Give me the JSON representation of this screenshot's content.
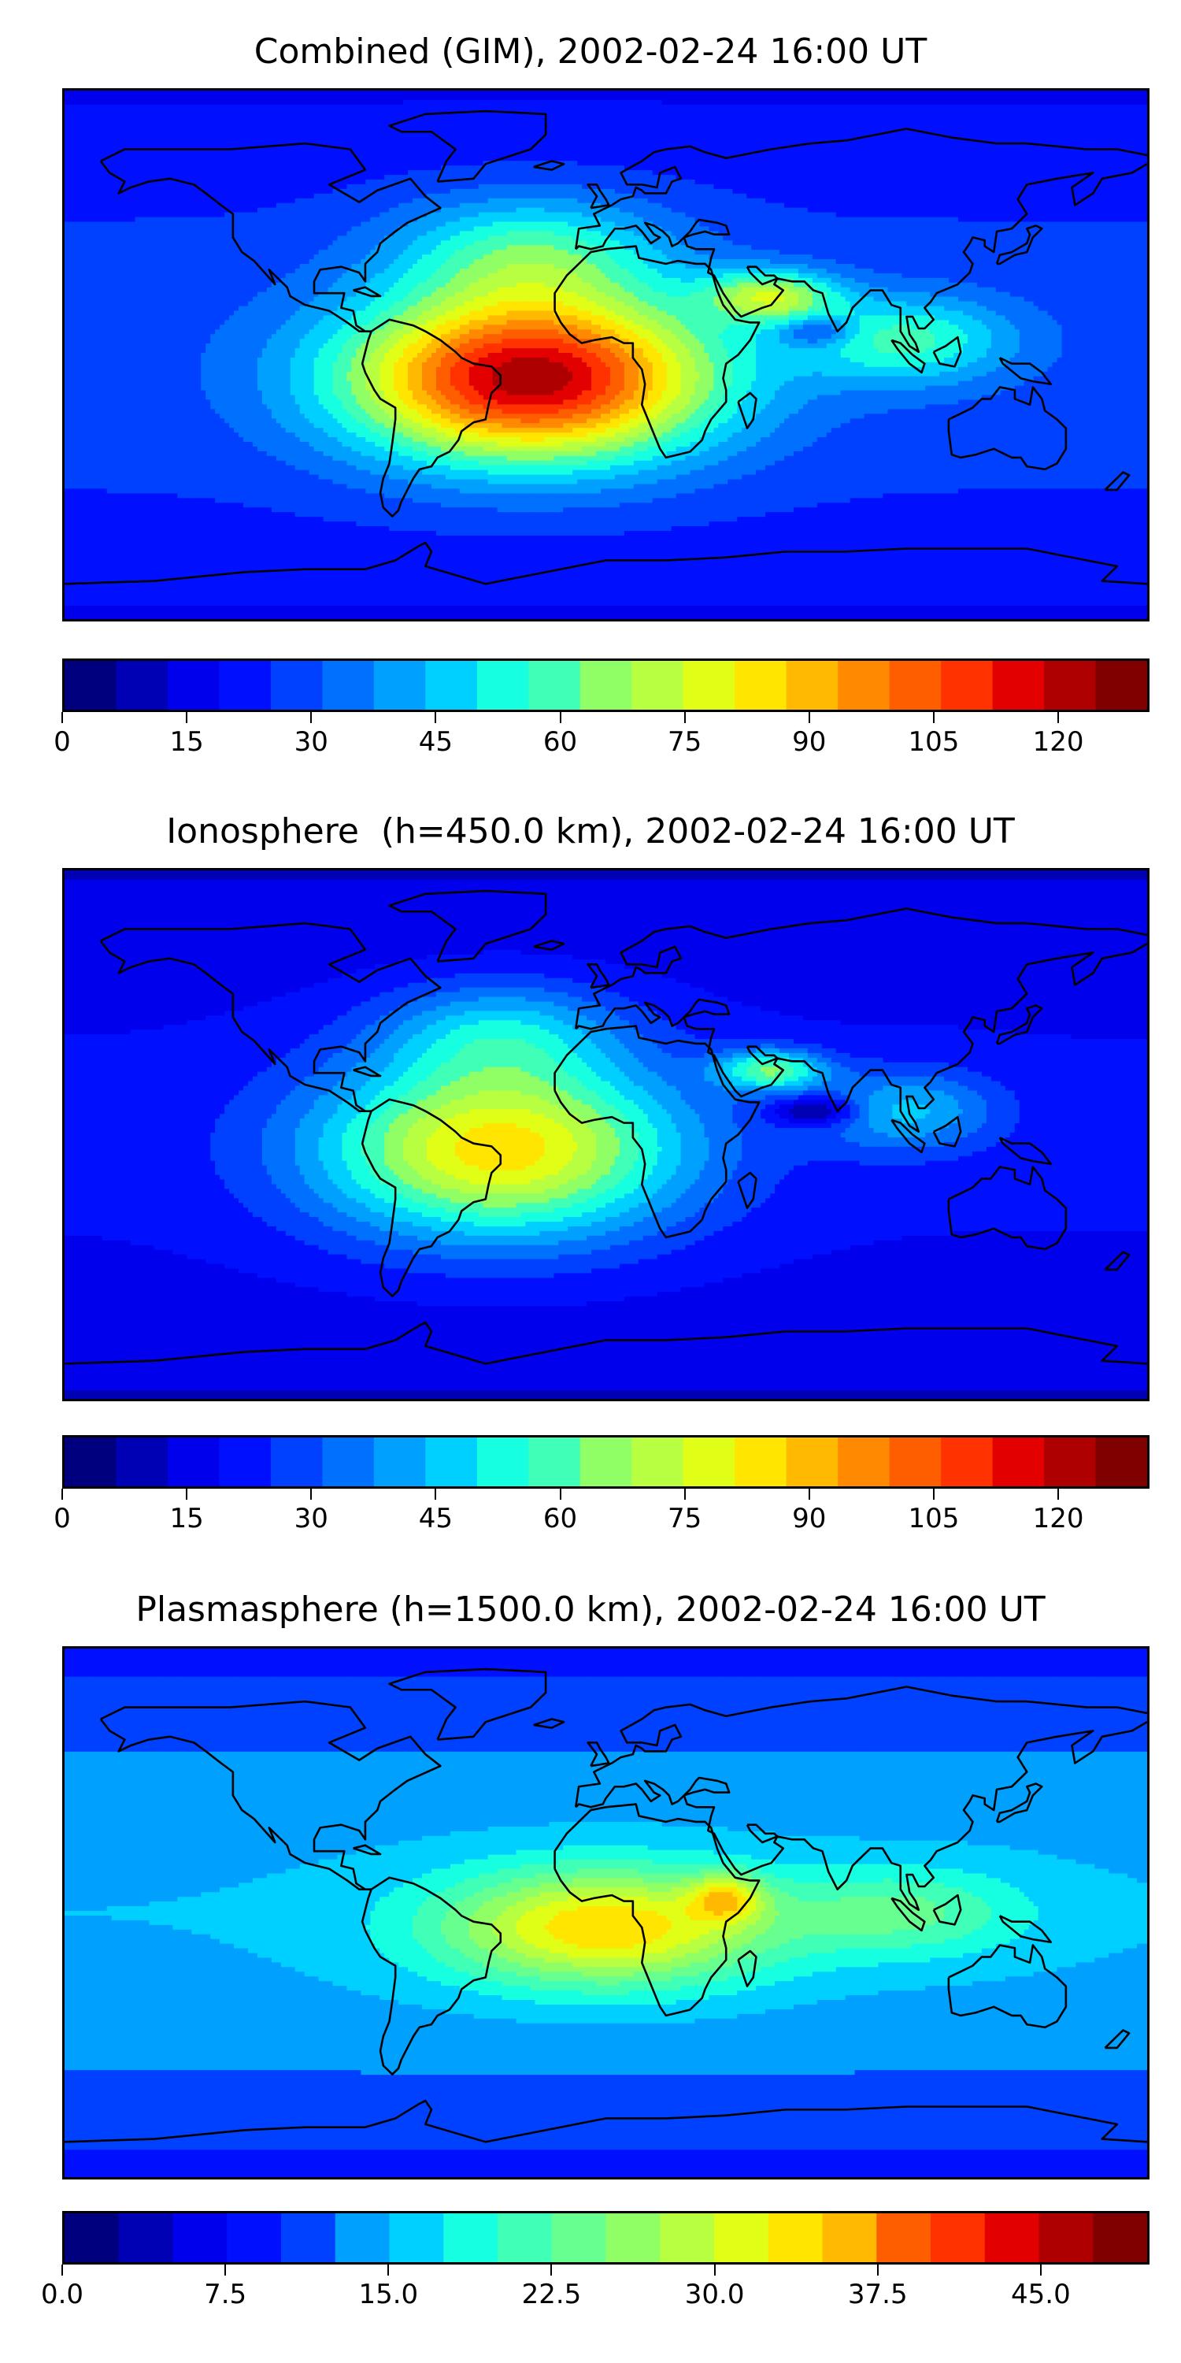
{
  "figure": {
    "panels": [
      {
        "title": "Combined (GIM), 2002-02-24 16:00 UT",
        "field": "combined",
        "colorbar": {
          "min": 0,
          "max": 131,
          "levels": 21,
          "ticks": [
            "0",
            "15",
            "30",
            "45",
            "60",
            "75",
            "90",
            "105",
            "120"
          ],
          "tick_values": [
            0,
            15,
            30,
            45,
            60,
            75,
            90,
            105,
            120
          ]
        }
      },
      {
        "title": "Ionosphere  (h=450.0 km), 2002-02-24 16:00 UT",
        "field": "ionosphere",
        "colorbar": {
          "min": 0,
          "max": 131,
          "levels": 21,
          "ticks": [
            "0",
            "15",
            "30",
            "45",
            "60",
            "75",
            "90",
            "105",
            "120"
          ],
          "tick_values": [
            0,
            15,
            30,
            45,
            60,
            75,
            90,
            105,
            120
          ]
        }
      },
      {
        "title": "Plasmasphere (h=1500.0 km), 2002-02-24 16:00 UT",
        "field": "plasmasphere",
        "colorbar": {
          "min": 0,
          "max": 50,
          "levels": 20,
          "ticks": [
            "0.0",
            "7.5",
            "15.0",
            "22.5",
            "30.0",
            "37.5",
            "45.0"
          ],
          "tick_values": [
            0,
            7.5,
            15,
            22.5,
            30,
            37.5,
            45
          ]
        }
      }
    ],
    "colormap": [
      "#00007f",
      "#0000b5",
      "#0000ec",
      "#0010ff",
      "#0040ff",
      "#0070ff",
      "#00a0ff",
      "#00d0ff",
      "#16ffe1",
      "#40ffb7",
      "#66ff90",
      "#90ff66",
      "#b7ff40",
      "#e1ff16",
      "#ffe500",
      "#ffb900",
      "#ff8900",
      "#ff5e00",
      "#ff3200",
      "#e30000",
      "#ae0000",
      "#800000"
    ],
    "coastline_color": "#000000"
  }
}
